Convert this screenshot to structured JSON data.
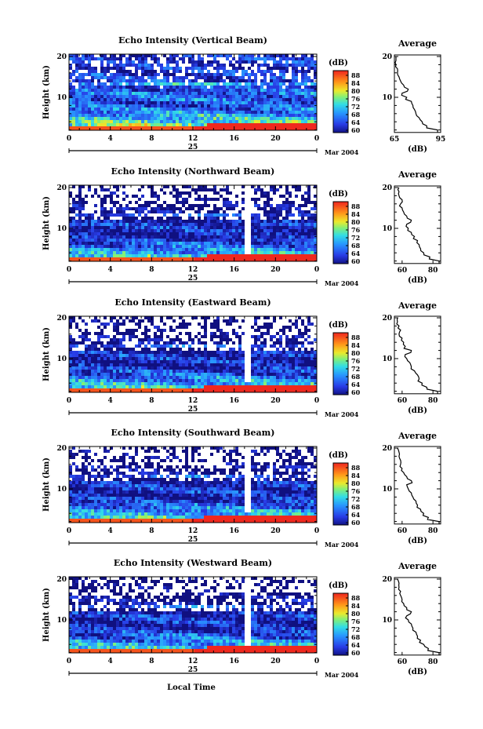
{
  "figure": {
    "xlabel": "Local Time",
    "date_label": "Mar 2004",
    "day_label": "25"
  },
  "chart_data": [
    {
      "type": "heatmap",
      "title": "Echo Intensity (Vertical Beam)",
      "ylabel": "Height (km)",
      "xlim": [
        0,
        24
      ],
      "ylim": [
        2,
        20
      ],
      "x_ticks": [
        "0",
        "4",
        "8",
        "12",
        "16",
        "20",
        "0"
      ],
      "y_ticks": [
        "10",
        "20"
      ],
      "colorbar": {
        "unit": "(dB)",
        "min": 60,
        "max": 90,
        "ticks": [
          "60",
          "64",
          "68",
          "72",
          "76",
          "80",
          "84",
          "88"
        ]
      },
      "profile": {
        "title": "Average",
        "xlabel": "(dB)",
        "xlim": [
          65,
          95
        ],
        "x_ticks": [
          "65",
          "95"
        ],
        "y_ticks": [
          "10",
          "20"
        ],
        "heights": [
          2,
          3,
          4,
          5,
          6,
          7,
          8,
          9,
          10,
          11,
          12,
          13,
          14,
          15,
          16,
          17,
          18,
          19,
          20
        ],
        "values": [
          93,
          86,
          83,
          81,
          79,
          78,
          77,
          76,
          73,
          70,
          74,
          71,
          69,
          68,
          67,
          67,
          66,
          66,
          66
        ]
      }
    },
    {
      "type": "heatmap",
      "title": "Echo Intensity (Northward Beam)",
      "ylabel": "Height (km)",
      "xlim": [
        0,
        24
      ],
      "ylim": [
        2,
        20
      ],
      "x_ticks": [
        "0",
        "4",
        "8",
        "12",
        "16",
        "20",
        "0"
      ],
      "y_ticks": [
        "10",
        "20"
      ],
      "colorbar": {
        "unit": "(dB)",
        "min": 60,
        "max": 90,
        "ticks": [
          "60",
          "64",
          "68",
          "72",
          "76",
          "80",
          "84",
          "88"
        ]
      },
      "profile": {
        "title": "Average",
        "xlabel": "(dB)",
        "xlim": [
          55,
          85
        ],
        "x_ticks": [
          "60",
          "80"
        ],
        "y_ticks": [
          "10",
          "20"
        ],
        "heights": [
          2,
          3,
          4,
          5,
          6,
          7,
          8,
          9,
          10,
          11,
          12,
          13,
          14,
          15,
          16,
          17,
          18,
          19,
          20
        ],
        "values": [
          84,
          78,
          74,
          72,
          71,
          70,
          68,
          66,
          64,
          63,
          66,
          63,
          61,
          60,
          59,
          60,
          58,
          58,
          58
        ]
      }
    },
    {
      "type": "heatmap",
      "title": "Echo Intensity (Eastward Beam)",
      "ylabel": "Height (km)",
      "xlim": [
        0,
        24
      ],
      "ylim": [
        2,
        20
      ],
      "x_ticks": [
        "0",
        "4",
        "8",
        "12",
        "16",
        "20",
        "0"
      ],
      "y_ticks": [
        "10",
        "20"
      ],
      "colorbar": {
        "unit": "(dB)",
        "min": 60,
        "max": 90,
        "ticks": [
          "60",
          "64",
          "68",
          "72",
          "76",
          "80",
          "84",
          "88"
        ]
      },
      "profile": {
        "title": "Average",
        "xlabel": "(dB)",
        "xlim": [
          55,
          85
        ],
        "x_ticks": [
          "60",
          "80"
        ],
        "y_ticks": [
          "10",
          "20"
        ],
        "heights": [
          2,
          3,
          4,
          5,
          6,
          7,
          8,
          9,
          10,
          11,
          12,
          13,
          14,
          15,
          16,
          17,
          18,
          19,
          20
        ],
        "values": [
          83,
          76,
          73,
          71,
          70,
          68,
          66,
          65,
          63,
          62,
          66,
          62,
          61,
          60,
          58,
          59,
          58,
          57,
          57
        ]
      }
    },
    {
      "type": "heatmap",
      "title": "Echo Intensity (Southward Beam)",
      "ylabel": "Height (km)",
      "xlim": [
        0,
        24
      ],
      "ylim": [
        2,
        20
      ],
      "x_ticks": [
        "0",
        "4",
        "8",
        "12",
        "16",
        "20",
        "0"
      ],
      "y_ticks": [
        "10",
        "20"
      ],
      "colorbar": {
        "unit": "(dB)",
        "min": 60,
        "max": 90,
        "ticks": [
          "60",
          "64",
          "68",
          "72",
          "76",
          "80",
          "84",
          "88"
        ]
      },
      "profile": {
        "title": "Average",
        "xlabel": "(dB)",
        "xlim": [
          55,
          85
        ],
        "x_ticks": [
          "60",
          "80"
        ],
        "y_ticks": [
          "10",
          "20"
        ],
        "heights": [
          2,
          3,
          4,
          5,
          6,
          7,
          8,
          9,
          10,
          11,
          12,
          13,
          14,
          15,
          16,
          17,
          18,
          19,
          20
        ],
        "values": [
          84,
          77,
          74,
          72,
          70,
          69,
          67,
          66,
          64,
          63,
          66,
          63,
          61,
          60,
          59,
          59,
          58,
          58,
          57
        ]
      }
    },
    {
      "type": "heatmap",
      "title": "Echo Intensity (Westward Beam)",
      "ylabel": "Height (km)",
      "xlim": [
        0,
        24
      ],
      "ylim": [
        2,
        20
      ],
      "x_ticks": [
        "0",
        "4",
        "8",
        "12",
        "16",
        "20",
        "0"
      ],
      "y_ticks": [
        "10",
        "20"
      ],
      "colorbar": {
        "unit": "(dB)",
        "min": 60,
        "max": 90,
        "ticks": [
          "60",
          "64",
          "68",
          "72",
          "76",
          "80",
          "84",
          "88"
        ]
      },
      "profile": {
        "title": "Average",
        "xlabel": "(dB)",
        "xlim": [
          55,
          85
        ],
        "x_ticks": [
          "60",
          "80"
        ],
        "y_ticks": [
          "10",
          "20"
        ],
        "heights": [
          2,
          3,
          4,
          5,
          6,
          7,
          8,
          9,
          10,
          11,
          12,
          13,
          14,
          15,
          16,
          17,
          18,
          19,
          20
        ],
        "values": [
          84,
          77,
          74,
          72,
          70,
          69,
          67,
          66,
          64,
          63,
          66,
          63,
          61,
          60,
          59,
          59,
          58,
          58,
          57
        ]
      }
    }
  ]
}
